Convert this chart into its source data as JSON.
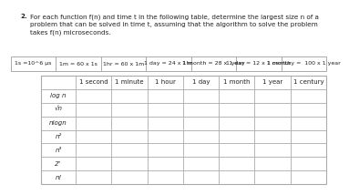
{
  "title_num": "2.",
  "title_text": "For each function f(n) and time t in the following table, determine the largest size n of a\nproblem that can be solved in time t, assuming that the algorithm to solve the problem\ntakes f(n) microseconds.",
  "conversions": [
    "1s =10^6 μs",
    "1m = 60 x 1s",
    "1hr = 60 x 1m",
    "1 day = 24 x 1hr",
    "1 month = 28 x 1 day",
    "1 year = 12 x 1 month",
    "1 century =  100 x 1 year"
  ],
  "col_headers": [
    "",
    "1 second",
    "1 minute",
    "1 hour",
    "1 day",
    "1 month",
    "1 year",
    "1 century"
  ],
  "row_labels": [
    "log n",
    "√n",
    "nlogn",
    "n²",
    "n³",
    "2ⁿ",
    "n!"
  ],
  "background": "#ffffff",
  "grid_color": "#aaaaaa",
  "text_color": "#222222",
  "title_fontsize": 5.2,
  "conversion_fontsize": 4.5,
  "table_header_fontsize": 5.0,
  "table_label_fontsize": 5.0
}
